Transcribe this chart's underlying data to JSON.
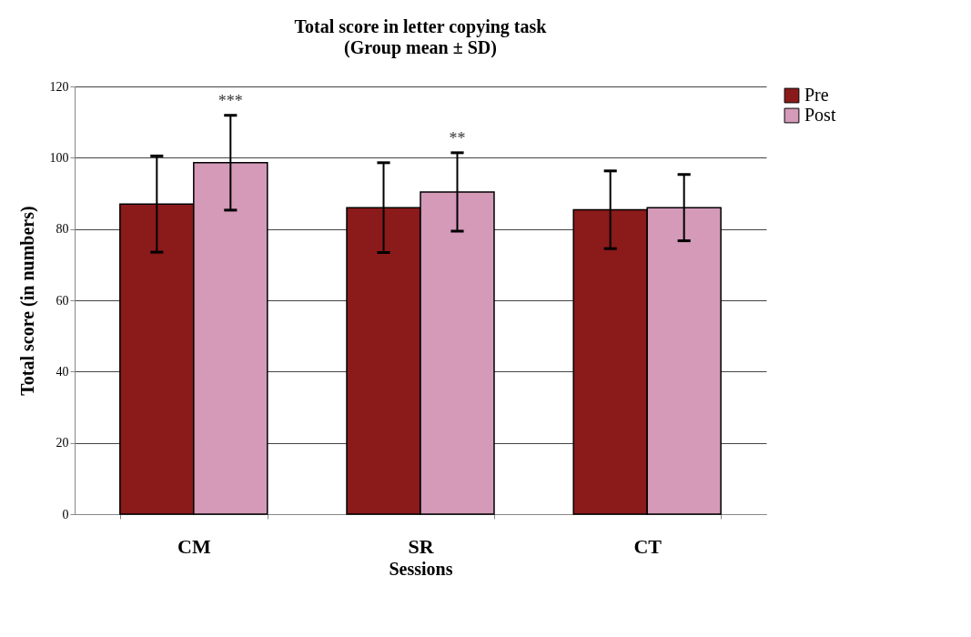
{
  "chart_data": {
    "type": "bar",
    "title": "Total score in letter copying task",
    "subtitle": "(Group mean ± SD)",
    "xlabel": "Sessions",
    "ylabel": "Total score (in numbers)",
    "categories": [
      "CM",
      "SR",
      "CT"
    ],
    "series": [
      {
        "name": "Pre",
        "color": "#8b1a1a",
        "values": [
          87.0,
          86.0,
          85.4
        ],
        "errors": [
          13.5,
          12.6,
          10.9
        ]
      },
      {
        "name": "Post",
        "color": "#d49ab8",
        "values": [
          98.6,
          90.4,
          86.0
        ],
        "errors": [
          13.3,
          11.0,
          9.3
        ]
      }
    ],
    "ylim": [
      0,
      120
    ],
    "yticks": [
      0,
      20,
      40,
      60,
      80,
      100,
      120
    ],
    "grid": "y",
    "legend": "right",
    "annotations": [
      "***",
      "**"
    ]
  }
}
